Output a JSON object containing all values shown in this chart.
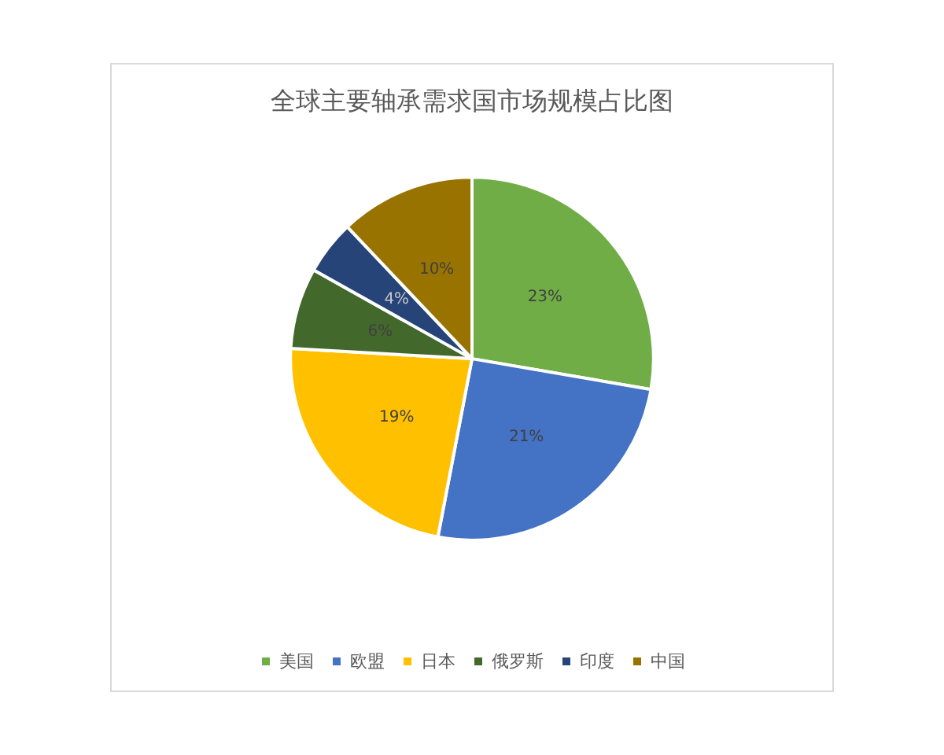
{
  "chart_data": {
    "type": "pie",
    "title": "全球主要轴承需求国市场规模占比图",
    "categories": [
      "美国",
      "欧盟",
      "日本",
      "俄罗斯",
      "印度",
      "中国"
    ],
    "values": [
      23,
      21,
      19,
      6,
      4,
      10
    ],
    "colors": [
      "#70ad47",
      "#4472c4",
      "#ffc000",
      "#43682b",
      "#264478",
      "#997300"
    ],
    "value_labels": [
      "23%",
      "21%",
      "19%",
      "6%",
      "4%",
      "10%"
    ],
    "legend": "bottom"
  }
}
